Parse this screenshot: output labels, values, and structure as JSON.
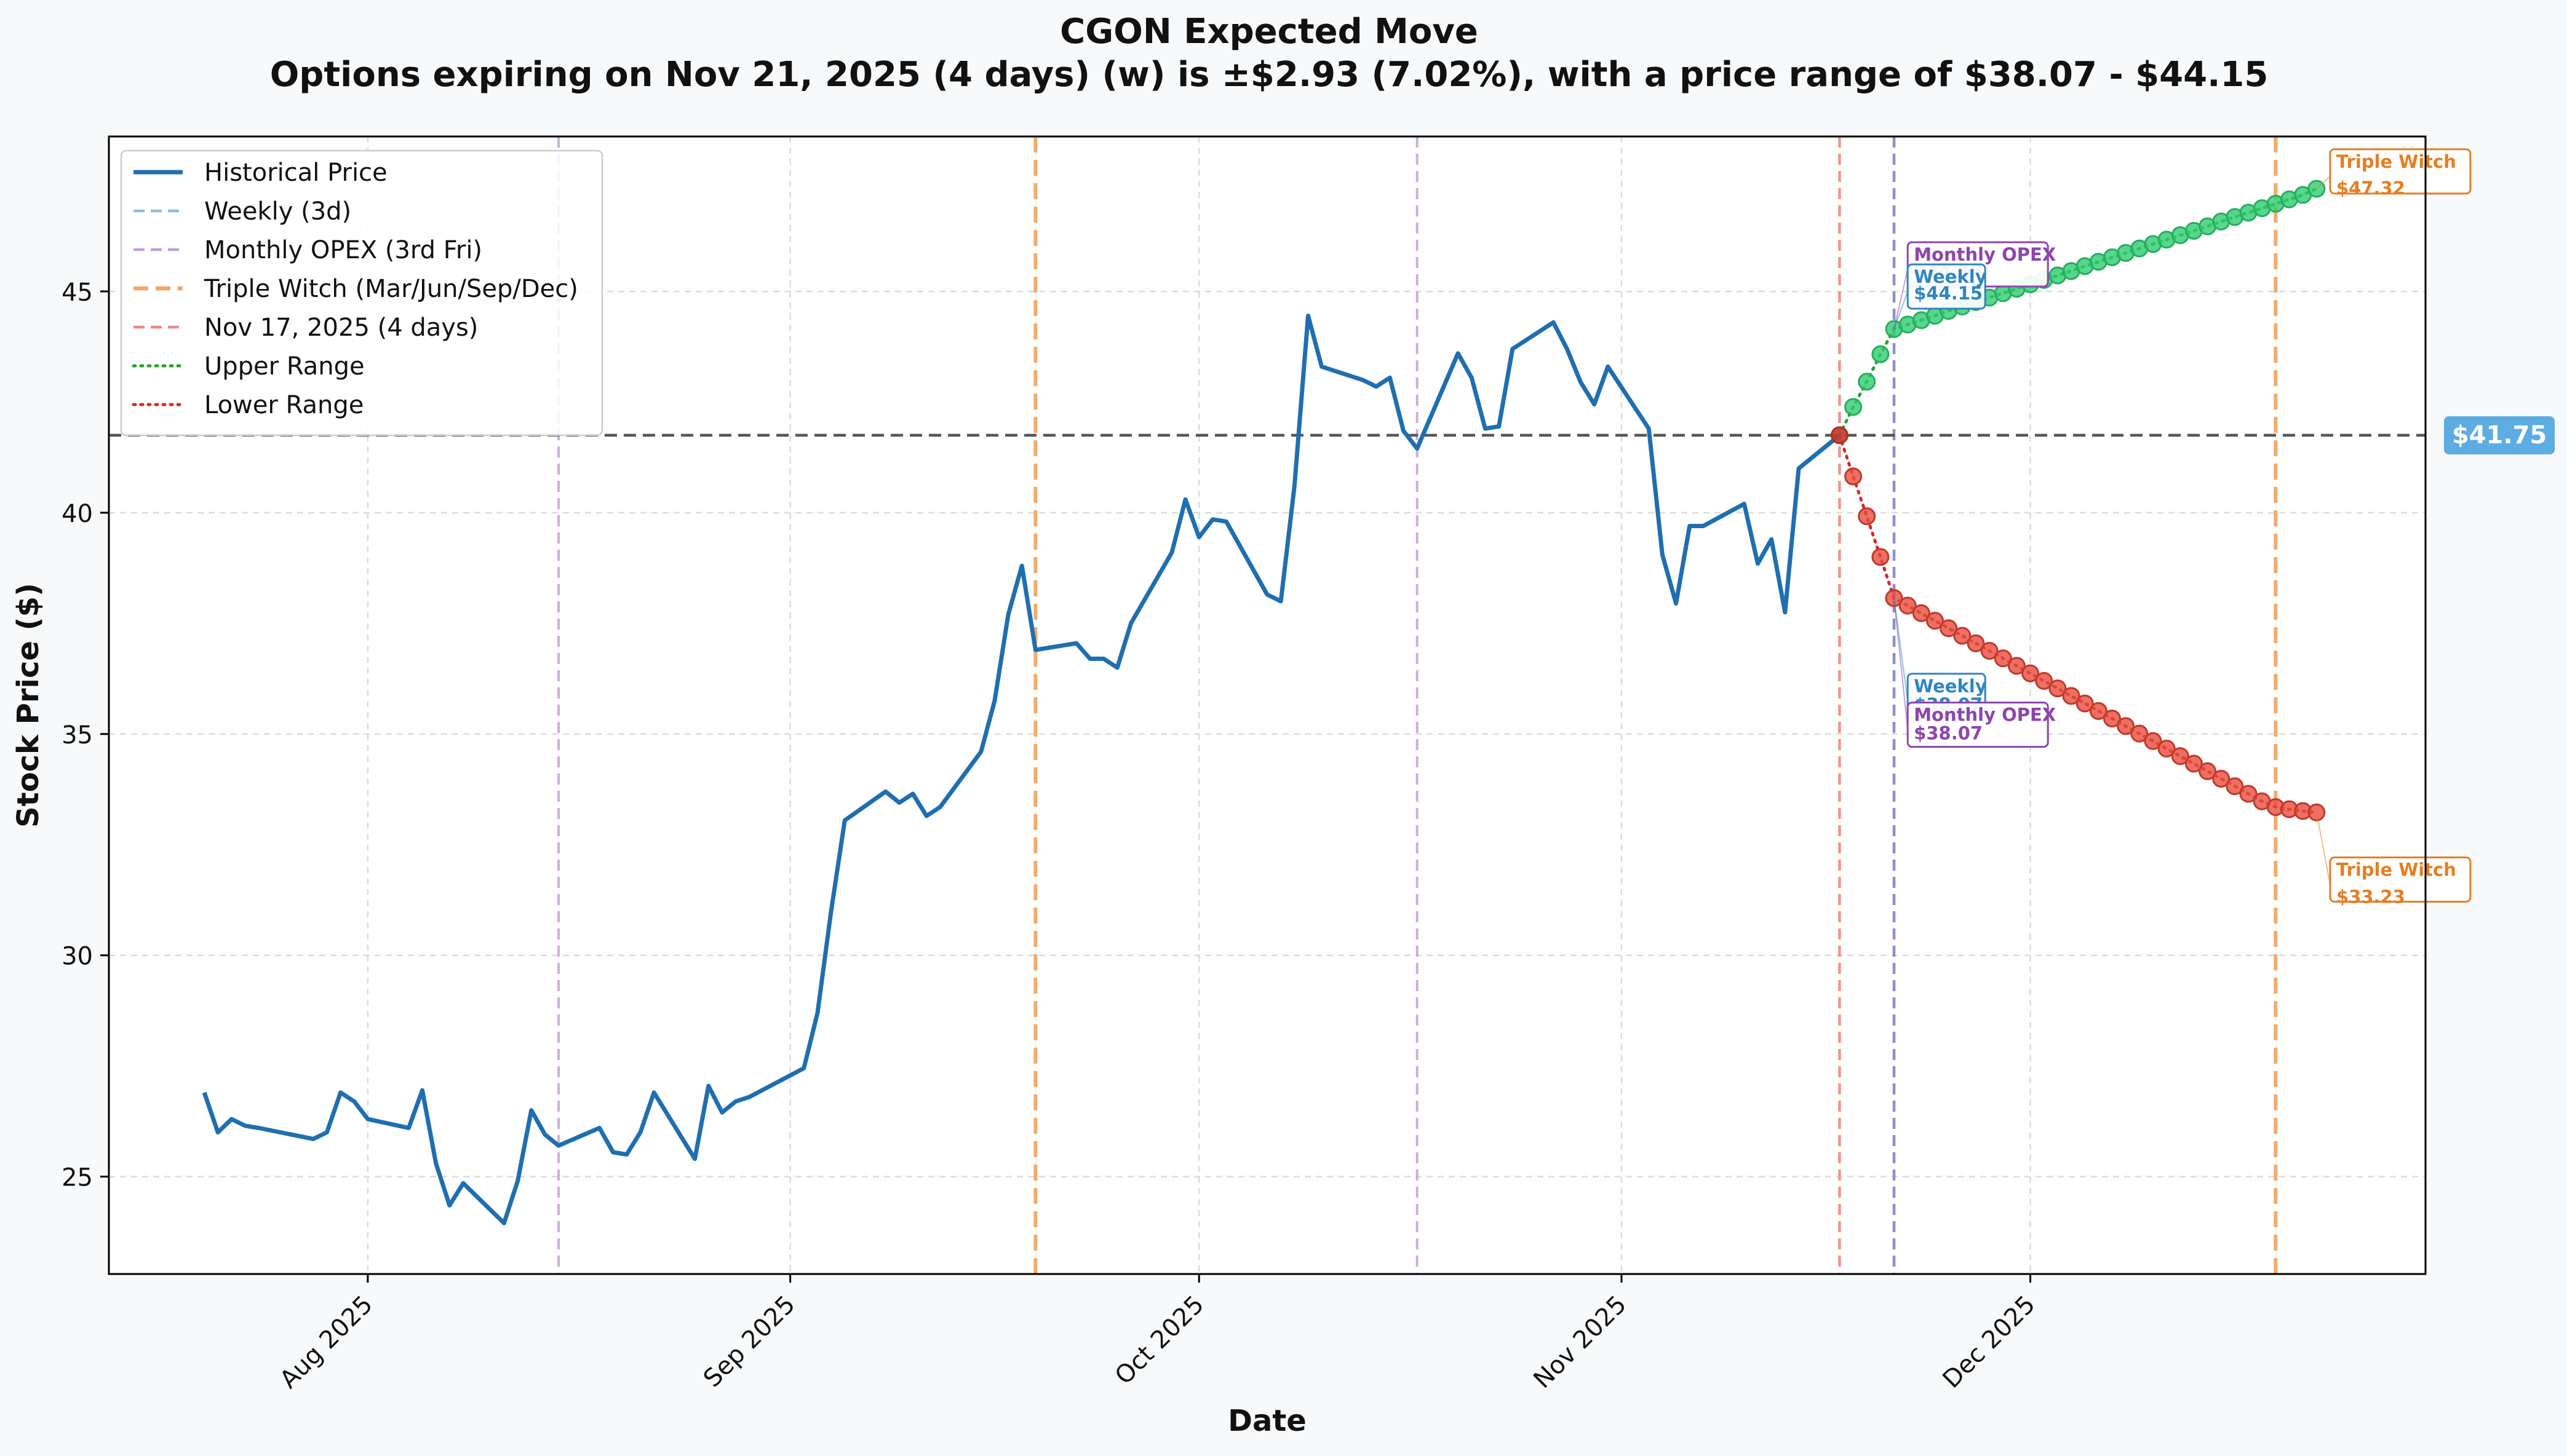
{
  "chart_data": {
    "type": "line",
    "title": "CGON Expected Move",
    "subtitle": "Options expiring on Nov 21, 2025 (4 days) (w) is ±$2.93 (7.02%), with a price range of $38.07 - $44.15",
    "xlabel": "Date",
    "ylabel": "Stock Price ($)",
    "xlim": [
      "2025-07-13",
      "2025-12-30"
    ],
    "ylim": [
      22.8,
      48.5
    ],
    "yticks": [
      25,
      30,
      35,
      40,
      45
    ],
    "xticks": [
      {
        "date": "2025-08-01",
        "label": "Aug 2025"
      },
      {
        "date": "2025-09-01",
        "label": "Sep 2025"
      },
      {
        "date": "2025-10-01",
        "label": "Oct 2025"
      },
      {
        "date": "2025-11-01",
        "label": "Nov 2025"
      },
      {
        "date": "2025-12-01",
        "label": "Dec 2025"
      }
    ],
    "grid": true,
    "legend_position": "top-left",
    "legend": [
      {
        "label": "Historical Price",
        "color": "#1f6fb0",
        "style": "solid"
      },
      {
        "label": "Weekly (3d)",
        "color": "#8fbde0",
        "style": "dashed"
      },
      {
        "label": "Monthly OPEX (3rd Fri)",
        "color": "#c2a0d6",
        "style": "dashed"
      },
      {
        "label": "Triple Witch (Mar/Jun/Sep/Dec)",
        "color": "#f0a868",
        "style": "dashed-thick"
      },
      {
        "label": "Nov 17, 2025 (4 days)",
        "color": "#ee8a88",
        "style": "dashed"
      },
      {
        "label": "Upper Range",
        "color": "#2ca02c",
        "style": "dotted"
      },
      {
        "label": "Lower Range",
        "color": "#d62728",
        "style": "dotted"
      }
    ],
    "current_price": 41.75,
    "current_price_label": "$41.75",
    "vertical_lines": [
      {
        "date": "2025-08-15",
        "kind": "monthly",
        "color": "#c2a0d6"
      },
      {
        "date": "2025-09-19",
        "kind": "triple",
        "color": "#f0a868"
      },
      {
        "date": "2025-10-17",
        "kind": "monthly",
        "color": "#c2a0d6"
      },
      {
        "date": "2025-11-17",
        "kind": "today",
        "color": "#ee8a88"
      },
      {
        "date": "2025-11-21",
        "kind": "weekly",
        "color": "#8a88c8"
      },
      {
        "date": "2025-12-19",
        "kind": "triple",
        "color": "#f0a868"
      }
    ],
    "series": [
      {
        "name": "Historical Price",
        "color": "#1f6fb0",
        "points": [
          [
            "2025-07-20",
            26.9
          ],
          [
            "2025-07-21",
            26.0
          ],
          [
            "2025-07-22",
            26.3
          ],
          [
            "2025-07-23",
            26.15
          ],
          [
            "2025-07-24",
            26.1
          ],
          [
            "2025-07-28",
            25.85
          ],
          [
            "2025-07-29",
            26.0
          ],
          [
            "2025-07-30",
            26.9
          ],
          [
            "2025-07-31",
            26.7
          ],
          [
            "2025-08-01",
            26.3
          ],
          [
            "2025-08-04",
            26.1
          ],
          [
            "2025-08-05",
            26.95
          ],
          [
            "2025-08-06",
            25.3
          ],
          [
            "2025-08-07",
            24.35
          ],
          [
            "2025-08-08",
            24.85
          ],
          [
            "2025-08-11",
            23.95
          ],
          [
            "2025-08-12",
            24.9
          ],
          [
            "2025-08-13",
            26.5
          ],
          [
            "2025-08-14",
            25.95
          ],
          [
            "2025-08-15",
            25.7
          ],
          [
            "2025-08-18",
            26.1
          ],
          [
            "2025-08-19",
            25.55
          ],
          [
            "2025-08-20",
            25.5
          ],
          [
            "2025-08-21",
            26.0
          ],
          [
            "2025-08-22",
            26.9
          ],
          [
            "2025-08-25",
            25.4
          ],
          [
            "2025-08-26",
            27.05
          ],
          [
            "2025-08-27",
            26.45
          ],
          [
            "2025-08-28",
            26.7
          ],
          [
            "2025-08-29",
            26.8
          ],
          [
            "2025-09-02",
            27.45
          ],
          [
            "2025-09-03",
            28.7
          ],
          [
            "2025-09-04",
            31.0
          ],
          [
            "2025-09-05",
            33.05
          ],
          [
            "2025-09-08",
            33.7
          ],
          [
            "2025-09-09",
            33.45
          ],
          [
            "2025-09-10",
            33.65
          ],
          [
            "2025-09-11",
            33.15
          ],
          [
            "2025-09-12",
            33.35
          ],
          [
            "2025-09-15",
            34.6
          ],
          [
            "2025-09-16",
            35.75
          ],
          [
            "2025-09-17",
            37.7
          ],
          [
            "2025-09-18",
            38.8
          ],
          [
            "2025-09-19",
            36.9
          ],
          [
            "2025-09-22",
            37.05
          ],
          [
            "2025-09-23",
            36.7
          ],
          [
            "2025-09-24",
            36.7
          ],
          [
            "2025-09-25",
            36.5
          ],
          [
            "2025-09-26",
            37.5
          ],
          [
            "2025-09-29",
            39.1
          ],
          [
            "2025-09-30",
            40.3
          ],
          [
            "2025-10-01",
            39.45
          ],
          [
            "2025-10-02",
            39.85
          ],
          [
            "2025-10-03",
            39.8
          ],
          [
            "2025-10-06",
            38.15
          ],
          [
            "2025-10-07",
            38.0
          ],
          [
            "2025-10-08",
            40.6
          ],
          [
            "2025-10-09",
            44.45
          ],
          [
            "2025-10-10",
            43.3
          ],
          [
            "2025-10-13",
            43.0
          ],
          [
            "2025-10-14",
            42.85
          ],
          [
            "2025-10-15",
            43.05
          ],
          [
            "2025-10-16",
            41.85
          ],
          [
            "2025-10-17",
            41.45
          ],
          [
            "2025-10-20",
            43.6
          ],
          [
            "2025-10-21",
            43.05
          ],
          [
            "2025-10-22",
            41.9
          ],
          [
            "2025-10-23",
            41.95
          ],
          [
            "2025-10-24",
            43.7
          ],
          [
            "2025-10-27",
            44.3
          ],
          [
            "2025-10-28",
            43.7
          ],
          [
            "2025-10-29",
            42.95
          ],
          [
            "2025-10-30",
            42.45
          ],
          [
            "2025-10-31",
            43.3
          ],
          [
            "2025-11-03",
            41.9
          ],
          [
            "2025-11-04",
            39.05
          ],
          [
            "2025-11-05",
            37.95
          ],
          [
            "2025-11-06",
            39.7
          ],
          [
            "2025-11-07",
            39.7
          ],
          [
            "2025-11-10",
            40.2
          ],
          [
            "2025-11-11",
            38.85
          ],
          [
            "2025-11-12",
            39.4
          ],
          [
            "2025-11-13",
            37.75
          ],
          [
            "2025-11-14",
            41.0
          ],
          [
            "2025-11-17",
            41.75
          ]
        ]
      },
      {
        "name": "Upper Range",
        "color": "#2ca02c",
        "points": [
          [
            "2025-11-17",
            41.75
          ],
          [
            "2025-11-18",
            42.39
          ],
          [
            "2025-11-19",
            42.96
          ],
          [
            "2025-11-20",
            43.58
          ],
          [
            "2025-11-21",
            44.15
          ],
          [
            "2025-11-22",
            44.25
          ],
          [
            "2025-11-23",
            44.35
          ],
          [
            "2025-11-24",
            44.45
          ],
          [
            "2025-11-25",
            44.56
          ],
          [
            "2025-11-26",
            44.66
          ],
          [
            "2025-11-27",
            44.76
          ],
          [
            "2025-11-28",
            44.86
          ],
          [
            "2025-11-29",
            44.96
          ],
          [
            "2025-11-30",
            45.06
          ],
          [
            "2025-12-01",
            45.16
          ],
          [
            "2025-12-02",
            45.26
          ],
          [
            "2025-12-03",
            45.36
          ],
          [
            "2025-12-04",
            45.46
          ],
          [
            "2025-12-05",
            45.57
          ],
          [
            "2025-12-06",
            45.67
          ],
          [
            "2025-12-07",
            45.77
          ],
          [
            "2025-12-08",
            45.87
          ],
          [
            "2025-12-09",
            45.97
          ],
          [
            "2025-12-10",
            46.07
          ],
          [
            "2025-12-11",
            46.17
          ],
          [
            "2025-12-12",
            46.27
          ],
          [
            "2025-12-13",
            46.37
          ],
          [
            "2025-12-14",
            46.47
          ],
          [
            "2025-12-15",
            46.58
          ],
          [
            "2025-12-16",
            46.68
          ],
          [
            "2025-12-17",
            46.78
          ],
          [
            "2025-12-18",
            46.88
          ],
          [
            "2025-12-19",
            46.98
          ],
          [
            "2025-12-20",
            47.08
          ],
          [
            "2025-12-21",
            47.18
          ],
          [
            "2025-12-22",
            47.32
          ]
        ]
      },
      {
        "name": "Lower Range",
        "color": "#d62728",
        "points": [
          [
            "2025-11-17",
            41.75
          ],
          [
            "2025-11-18",
            40.82
          ],
          [
            "2025-11-19",
            39.92
          ],
          [
            "2025-11-20",
            39.0
          ],
          [
            "2025-11-21",
            38.07
          ],
          [
            "2025-11-22",
            37.9
          ],
          [
            "2025-11-23",
            37.73
          ],
          [
            "2025-11-24",
            37.56
          ],
          [
            "2025-11-25",
            37.39
          ],
          [
            "2025-11-26",
            37.22
          ],
          [
            "2025-11-27",
            37.05
          ],
          [
            "2025-11-28",
            36.88
          ],
          [
            "2025-11-29",
            36.71
          ],
          [
            "2025-11-30",
            36.54
          ],
          [
            "2025-12-01",
            36.37
          ],
          [
            "2025-12-02",
            36.2
          ],
          [
            "2025-12-03",
            36.03
          ],
          [
            "2025-12-04",
            35.86
          ],
          [
            "2025-12-05",
            35.69
          ],
          [
            "2025-12-06",
            35.52
          ],
          [
            "2025-12-07",
            35.35
          ],
          [
            "2025-12-08",
            35.18
          ],
          [
            "2025-12-09",
            35.01
          ],
          [
            "2025-12-10",
            34.84
          ],
          [
            "2025-12-11",
            34.67
          ],
          [
            "2025-12-12",
            34.5
          ],
          [
            "2025-12-13",
            34.33
          ],
          [
            "2025-12-14",
            34.16
          ],
          [
            "2025-12-15",
            33.99
          ],
          [
            "2025-12-16",
            33.82
          ],
          [
            "2025-12-17",
            33.65
          ],
          [
            "2025-12-18",
            33.48
          ],
          [
            "2025-12-19",
            33.35
          ],
          [
            "2025-12-20",
            33.3
          ],
          [
            "2025-12-21",
            33.26
          ],
          [
            "2025-12-22",
            33.23
          ]
        ]
      }
    ],
    "annotations": [
      {
        "name": "monthly-upper",
        "line1": "Monthly OPEX",
        "line2": "$44.15",
        "color": "#8e44ad",
        "anchor": [
          "2025-11-21",
          44.15
        ],
        "at": [
          "2025-11-22",
          46.0
        ],
        "sep": 27
      },
      {
        "name": "weekly-upper",
        "line1": "Weekly",
        "line2": "$44.15",
        "color": "#2e86c1",
        "anchor": [
          "2025-11-21",
          44.15
        ],
        "at": [
          "2025-11-22",
          45.5
        ],
        "sep": 27
      },
      {
        "name": "triple-upper",
        "line1": "Triple Witch",
        "line2": "$47.32",
        "color": "#e67e22",
        "anchor": [
          "2025-12-22",
          47.32
        ],
        "at": [
          "2025-12-23",
          48.1
        ],
        "sep": 43
      },
      {
        "name": "weekly-lower",
        "line1": "Weekly",
        "line2": "$38.07",
        "color": "#2e86c1",
        "anchor": [
          "2025-11-21",
          38.07
        ],
        "at": [
          "2025-11-22",
          36.25
        ],
        "sep": 30
      },
      {
        "name": "monthly-lower",
        "line1": "Monthly OPEX",
        "line2": "$38.07",
        "color": "#8e44ad",
        "anchor": [
          "2025-11-21",
          38.07
        ],
        "at": [
          "2025-11-22",
          35.6
        ],
        "sep": 30
      },
      {
        "name": "triple-lower",
        "line1": "Triple Witch",
        "line2": "$33.23",
        "color": "#e67e22",
        "anchor": [
          "2025-12-22",
          33.23
        ],
        "at": [
          "2025-12-23",
          32.1
        ],
        "sep": 44
      }
    ]
  }
}
